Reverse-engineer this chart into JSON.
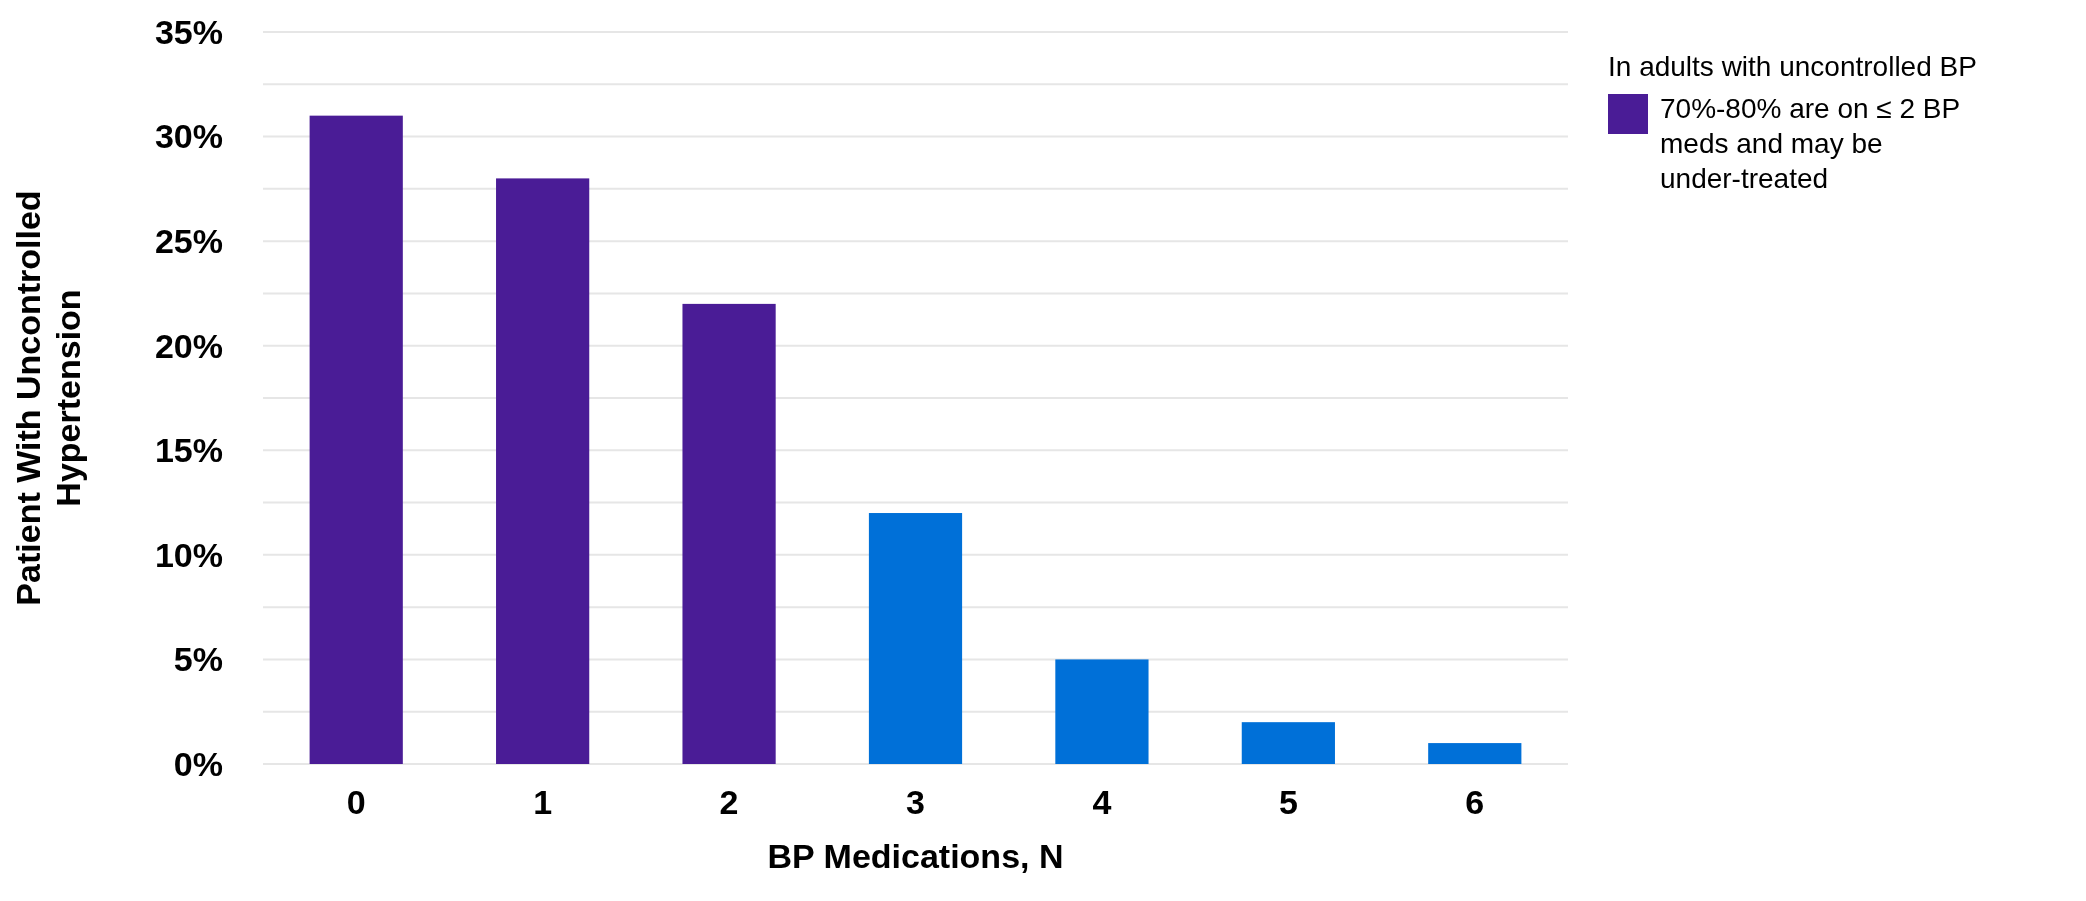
{
  "chart_data": {
    "type": "bar",
    "stacked": true,
    "xlabel": "BP Medications, N",
    "ylabel": "Patient With Uncontrolled Hypertension",
    "legend_title": "In adults with uncontrolled BP",
    "legend": "top right",
    "grid": "y",
    "categories": [
      "0",
      "1",
      "2",
      "3",
      "4",
      "5",
      "6"
    ],
    "series": [
      {
        "name": "70%-80% are on ≤ 2 BP meds and may be under-treated",
        "color": "#4a1c96",
        "values": [
          31,
          28,
          22,
          null,
          null,
          null,
          null
        ]
      },
      {
        "color": "#0070d8",
        "values": [
          null,
          null,
          null,
          12,
          5,
          2,
          1
        ]
      }
    ],
    "ylim": [
      0,
      35
    ],
    "yticks": [
      {
        "value": 0,
        "label": "0%"
      },
      {
        "value": 2.5,
        "label": null
      },
      {
        "value": 5,
        "label": "5%"
      },
      {
        "value": 7.5,
        "label": null
      },
      {
        "value": 10,
        "label": "10%"
      },
      {
        "value": 12.5,
        "label": null
      },
      {
        "value": 15,
        "label": "15%"
      },
      {
        "value": 17.5,
        "label": null
      },
      {
        "value": 20,
        "label": "20%"
      },
      {
        "value": 22.5,
        "label": null
      },
      {
        "value": 25,
        "label": "25%"
      },
      {
        "value": 27.5,
        "label": null
      },
      {
        "value": 30,
        "label": "30%"
      },
      {
        "value": 32.5,
        "label": null
      },
      {
        "value": 35,
        "label": "35%"
      }
    ]
  }
}
